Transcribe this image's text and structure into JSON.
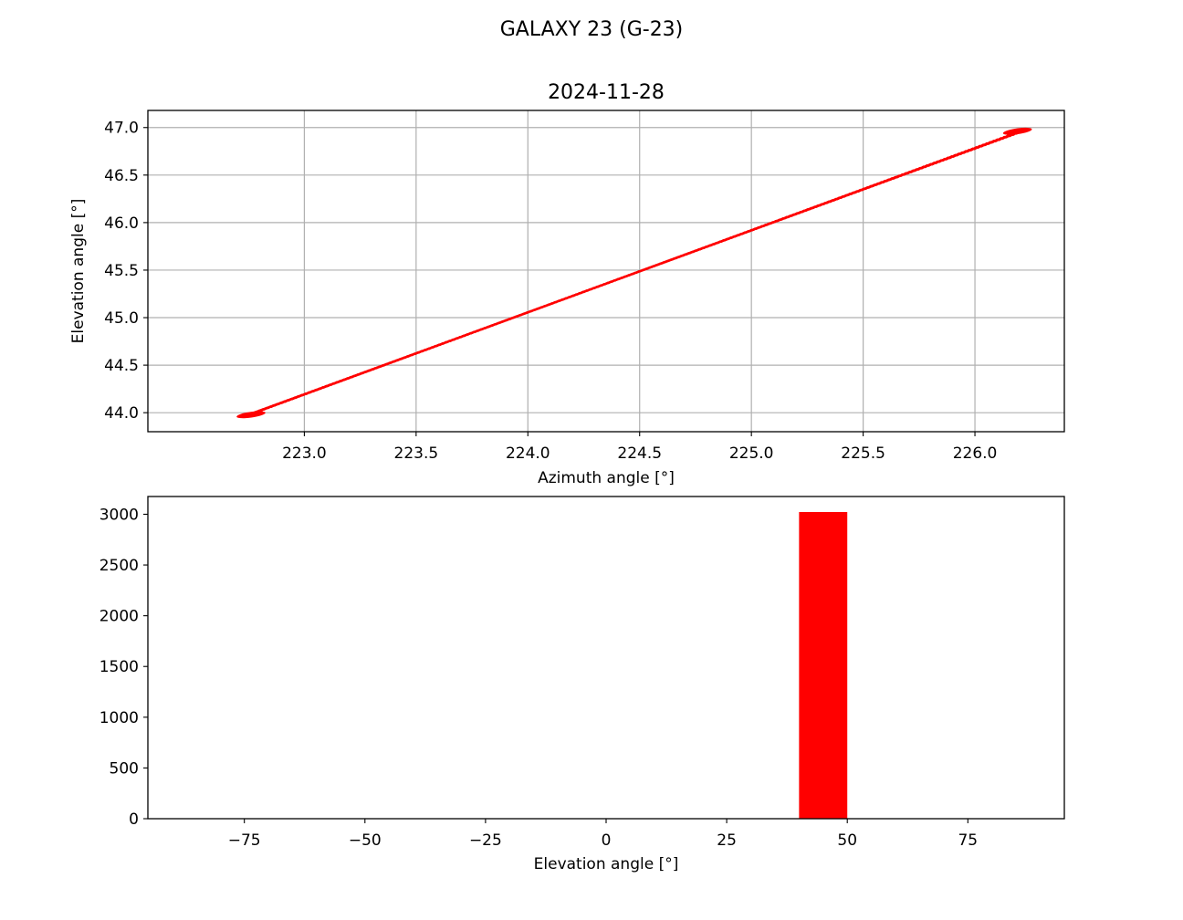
{
  "figure": {
    "suptitle": "GALAXY 23 (G-23)",
    "colors": {
      "series": "#ff0000",
      "grid": "#b0b0b0",
      "axes": "#000000"
    }
  },
  "chart_data": [
    {
      "type": "scatter",
      "title": "2024-11-28",
      "xlabel": "Azimuth angle [°]",
      "ylabel": "Elevation angle [°]",
      "xlim": [
        222.3,
        226.4
      ],
      "ylim": [
        43.8,
        47.18
      ],
      "xticks": [
        223.0,
        223.5,
        224.0,
        224.5,
        225.0,
        225.5,
        226.0
      ],
      "xtick_labels": [
        "223.0",
        "223.5",
        "224.0",
        "224.5",
        "225.0",
        "225.5",
        "226.0"
      ],
      "yticks": [
        44.0,
        44.5,
        45.0,
        45.5,
        46.0,
        46.5,
        47.0
      ],
      "ytick_labels": [
        "44.0",
        "44.5",
        "45.0",
        "45.5",
        "46.0",
        "46.5",
        "47.0"
      ],
      "grid": true,
      "marker": "dotted",
      "trend": {
        "x": [
          222.73,
          226.23
        ],
        "y": [
          43.96,
          46.98
        ]
      },
      "band_width_deg": 0.06,
      "n_points": 3022
    },
    {
      "type": "bar",
      "title": "",
      "xlabel": "Elevation angle [°]",
      "ylabel": "",
      "xlim": [
        -95,
        95
      ],
      "ylim": [
        0,
        3175
      ],
      "xticks": [
        -75,
        -50,
        -25,
        0,
        25,
        50,
        75
      ],
      "xtick_labels": [
        "−75",
        "−50",
        "−25",
        "0",
        "25",
        "50",
        "75"
      ],
      "yticks": [
        0,
        500,
        1000,
        1500,
        2000,
        2500,
        3000
      ],
      "ytick_labels": [
        "0",
        "500",
        "1000",
        "1500",
        "2000",
        "2500",
        "3000"
      ],
      "grid": false,
      "bins": [
        {
          "x0": 40,
          "x1": 50,
          "count": 3022
        }
      ]
    }
  ]
}
